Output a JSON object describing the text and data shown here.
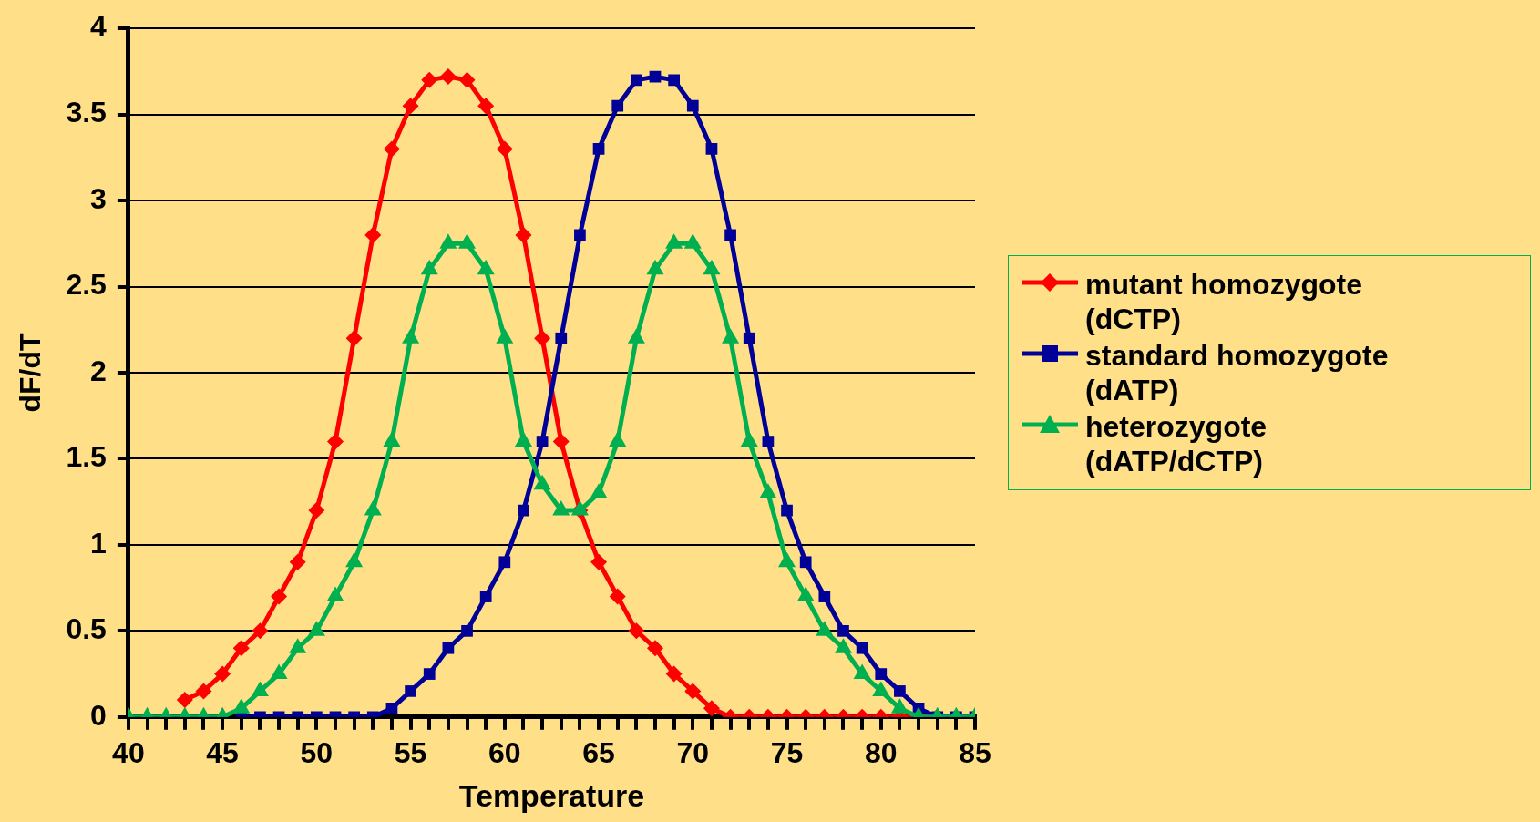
{
  "chart_data": {
    "type": "line",
    "xlabel": "Temperature",
    "ylabel": "dF/dT",
    "x": [
      40,
      41,
      42,
      43,
      44,
      45,
      46,
      47,
      48,
      49,
      50,
      51,
      52,
      53,
      54,
      55,
      56,
      57,
      58,
      59,
      60,
      61,
      62,
      63,
      64,
      65,
      66,
      67,
      68,
      69,
      70,
      71,
      72,
      73,
      74,
      75,
      76,
      77,
      78,
      79,
      80,
      81,
      82,
      83,
      84,
      85
    ],
    "series": [
      {
        "name": "mutant homozygote (dCTP)",
        "color": "#ff0000",
        "marker": "diamond",
        "values": [
          null,
          null,
          null,
          0.1,
          0.15,
          0.25,
          0.4,
          0.5,
          0.7,
          0.9,
          1.2,
          1.6,
          2.2,
          2.8,
          3.3,
          3.55,
          3.7,
          3.72,
          3.7,
          3.55,
          3.3,
          2.8,
          2.2,
          1.6,
          1.2,
          0.9,
          0.7,
          0.5,
          0.4,
          0.25,
          0.15,
          0.05,
          0,
          0,
          0,
          0,
          0,
          0,
          0,
          0,
          0,
          0,
          0,
          0,
          null,
          null
        ]
      },
      {
        "name": "standard homozygote (dATP)",
        "color": "#000099",
        "marker": "square",
        "values": [
          null,
          null,
          null,
          null,
          null,
          null,
          0,
          0,
          0,
          0,
          0,
          0,
          0,
          0,
          0.05,
          0.15,
          0.25,
          0.4,
          0.5,
          0.7,
          0.9,
          1.2,
          1.6,
          2.2,
          2.8,
          3.3,
          3.55,
          3.7,
          3.72,
          3.7,
          3.55,
          3.3,
          2.8,
          2.2,
          1.6,
          1.2,
          0.9,
          0.7,
          0.5,
          0.4,
          0.25,
          0.15,
          0.05,
          0,
          0,
          0
        ]
      },
      {
        "name": "heterozygote (dATP/dCTP)",
        "color": "#00b050",
        "marker": "triangle",
        "values": [
          0,
          0,
          0,
          0,
          0,
          0,
          0.05,
          0.15,
          0.25,
          0.4,
          0.5,
          0.7,
          0.9,
          1.2,
          1.6,
          2.2,
          2.6,
          2.75,
          2.75,
          2.6,
          2.2,
          1.6,
          1.35,
          1.2,
          1.2,
          1.3,
          1.6,
          2.2,
          2.6,
          2.75,
          2.75,
          2.6,
          2.2,
          1.6,
          1.3,
          0.9,
          0.7,
          0.5,
          0.4,
          0.25,
          0.15,
          0.05,
          0,
          0,
          0,
          0
        ]
      }
    ],
    "xlim": [
      40,
      85
    ],
    "xticks": [
      40,
      {
        "value": 41,
        "label": null
      },
      {
        "value": 42,
        "label": null
      },
      {
        "value": 43,
        "label": null
      },
      {
        "value": 44,
        "label": null
      },
      45,
      {
        "value": 46,
        "label": null
      },
      {
        "value": 47,
        "label": null
      },
      {
        "value": 48,
        "label": null
      },
      {
        "value": 49,
        "label": null
      },
      50,
      {
        "value": 51,
        "label": null
      },
      {
        "value": 52,
        "label": null
      },
      {
        "value": 53,
        "label": null
      },
      {
        "value": 54,
        "label": null
      },
      55,
      {
        "value": 56,
        "label": null
      },
      {
        "value": 57,
        "label": null
      },
      {
        "value": 58,
        "label": null
      },
      {
        "value": 59,
        "label": null
      },
      60,
      {
        "value": 61,
        "label": null
      },
      {
        "value": 62,
        "label": null
      },
      {
        "value": 63,
        "label": null
      },
      {
        "value": 64,
        "label": null
      },
      65,
      {
        "value": 66,
        "label": null
      },
      {
        "value": 67,
        "label": null
      },
      {
        "value": 68,
        "label": null
      },
      {
        "value": 69,
        "label": null
      },
      70,
      {
        "value": 71,
        "label": null
      },
      {
        "value": 72,
        "label": null
      },
      {
        "value": 73,
        "label": null
      },
      {
        "value": 74,
        "label": null
      },
      75,
      {
        "value": 76,
        "label": null
      },
      {
        "value": 77,
        "label": null
      },
      {
        "value": 78,
        "label": null
      },
      {
        "value": 79,
        "label": null
      },
      80,
      {
        "value": 81,
        "label": null
      },
      {
        "value": 82,
        "label": null
      },
      {
        "value": 83,
        "label": null
      },
      {
        "value": 84,
        "label": null
      },
      85
    ],
    "ylim": [
      0,
      4
    ],
    "yticks": [
      0,
      0.5,
      1,
      1.5,
      2,
      2.5,
      3,
      3.5,
      4
    ],
    "grid": "y",
    "legend": "right",
    "line_style": "solid"
  }
}
